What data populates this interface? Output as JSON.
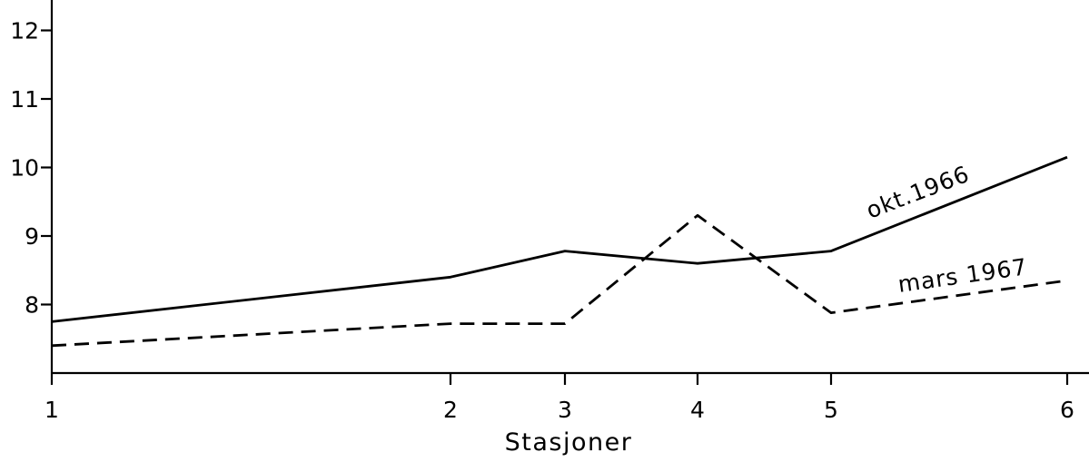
{
  "chart_data": {
    "type": "line",
    "xlabel": "Stasjoner",
    "ylabel": "",
    "x": [
      1,
      2,
      3,
      4,
      5,
      6
    ],
    "x_tick_labels": [
      "1",
      "2",
      "3",
      "4",
      "5",
      "6"
    ],
    "y_ticks": [
      8,
      9,
      10,
      11,
      12
    ],
    "y_tick_labels": [
      "8",
      "9",
      "10",
      "11",
      "12"
    ],
    "ylim": [
      7.0,
      12.4
    ],
    "grid": false,
    "colors": {
      "line": "#000000",
      "background": "#ffffff"
    },
    "series": [
      {
        "name": "okt.1966",
        "style": "solid",
        "values": [
          7.75,
          8.4,
          8.78,
          8.6,
          8.78,
          10.15
        ]
      },
      {
        "name": "mars 1967",
        "style": "dashed",
        "values": [
          7.4,
          7.72,
          7.72,
          9.3,
          7.88,
          8.35
        ]
      }
    ]
  }
}
